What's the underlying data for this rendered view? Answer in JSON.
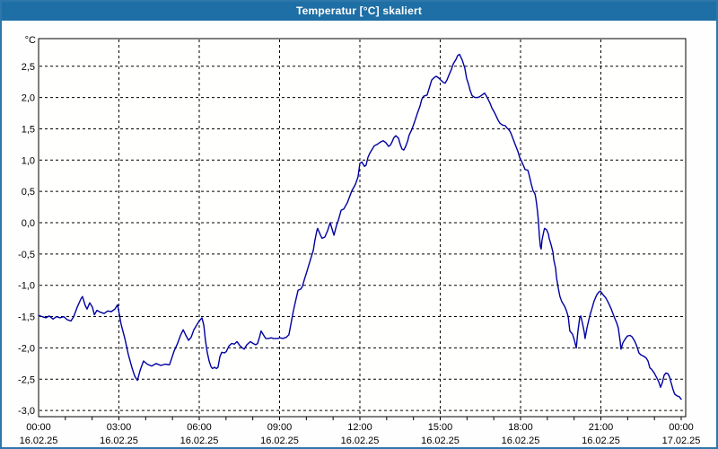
{
  "window": {
    "title": "Temperatur [°C] skaliert"
  },
  "colors": {
    "titlebar": "#1e6fa5",
    "window_border": "#2d77aa",
    "background": "#fdfefd",
    "plot_background": "#fffffe",
    "plot_border": "#000000",
    "grid": "#000000",
    "line": "#0000a0",
    "label": "#000000"
  },
  "chart_data": {
    "type": "line",
    "title": "Temperatur [°C] skaliert",
    "y_unit_label": "°C",
    "xlabel": "",
    "ylabel": "°C",
    "ylim": [
      -3.1,
      2.95
    ],
    "x_range_hours": [
      0,
      24.17
    ],
    "grid": "dashed",
    "legend_position": "none",
    "y_ticks": [
      2.5,
      2.0,
      1.5,
      1.0,
      0.5,
      0.0,
      -0.5,
      -1.0,
      -1.5,
      -2.0,
      -2.5,
      -3.0
    ],
    "y_tick_labels": [
      "2,5",
      "2,0",
      "1,5",
      "1,0",
      "0,5",
      "0,0",
      "-0,5",
      "-1,0",
      "-1,5",
      "-2,0",
      "-2,5",
      "-3,0"
    ],
    "x_ticks": [
      {
        "hour": 0,
        "time": "00:00",
        "date": "16.02.25",
        "gridline": false
      },
      {
        "hour": 3,
        "time": "03:00",
        "date": "16.02.25",
        "gridline": true
      },
      {
        "hour": 6,
        "time": "06:00",
        "date": "16.02.25",
        "gridline": true
      },
      {
        "hour": 9,
        "time": "09:00",
        "date": "16.02.25",
        "gridline": true
      },
      {
        "hour": 12,
        "time": "12:00",
        "date": "16.02.25",
        "gridline": true
      },
      {
        "hour": 15,
        "time": "15:00",
        "date": "16.02.25",
        "gridline": true
      },
      {
        "hour": 18,
        "time": "18:00",
        "date": "16.02.25",
        "gridline": true
      },
      {
        "hour": 21,
        "time": "21:00",
        "date": "16.02.25",
        "gridline": true
      },
      {
        "hour": 24,
        "time": "00:00",
        "date": "17.02.25",
        "gridline": false
      }
    ],
    "minor_tick_every_hours": 1,
    "series": [
      {
        "name": "Temperatur skaliert",
        "color": "#0000a0",
        "points": [
          [
            0,
            -1.48
          ],
          [
            0.13,
            -1.5
          ],
          [
            0.27,
            -1.52
          ],
          [
            0.4,
            -1.49
          ],
          [
            0.54,
            -1.54
          ],
          [
            0.67,
            -1.5
          ],
          [
            0.8,
            -1.52
          ],
          [
            0.94,
            -1.5
          ],
          [
            1.07,
            -1.55
          ],
          [
            1.21,
            -1.57
          ],
          [
            1.31,
            -1.5
          ],
          [
            1.44,
            -1.35
          ],
          [
            1.58,
            -1.22
          ],
          [
            1.64,
            -1.18
          ],
          [
            1.74,
            -1.32
          ],
          [
            1.81,
            -1.38
          ],
          [
            1.91,
            -1.28
          ],
          [
            2.01,
            -1.35
          ],
          [
            2.08,
            -1.47
          ],
          [
            2.18,
            -1.4
          ],
          [
            2.31,
            -1.43
          ],
          [
            2.45,
            -1.45
          ],
          [
            2.58,
            -1.41
          ],
          [
            2.72,
            -1.42
          ],
          [
            2.85,
            -1.38
          ],
          [
            2.95,
            -1.31
          ],
          [
            3.08,
            -1.62
          ],
          [
            3.22,
            -1.85
          ],
          [
            3.35,
            -2.1
          ],
          [
            3.49,
            -2.32
          ],
          [
            3.59,
            -2.45
          ],
          [
            3.69,
            -2.52
          ],
          [
            3.79,
            -2.36
          ],
          [
            3.92,
            -2.21
          ],
          [
            4.06,
            -2.26
          ],
          [
            4.22,
            -2.29
          ],
          [
            4.39,
            -2.25
          ],
          [
            4.56,
            -2.28
          ],
          [
            4.73,
            -2.26
          ],
          [
            4.89,
            -2.27
          ],
          [
            5.06,
            -2.05
          ],
          [
            5.2,
            -1.92
          ],
          [
            5.3,
            -1.8
          ],
          [
            5.4,
            -1.71
          ],
          [
            5.5,
            -1.8
          ],
          [
            5.6,
            -1.88
          ],
          [
            5.7,
            -1.83
          ],
          [
            5.8,
            -1.71
          ],
          [
            5.9,
            -1.64
          ],
          [
            6.0,
            -1.57
          ],
          [
            6.1,
            -1.52
          ],
          [
            6.17,
            -1.64
          ],
          [
            6.23,
            -1.88
          ],
          [
            6.3,
            -2.07
          ],
          [
            6.37,
            -2.21
          ],
          [
            6.44,
            -2.3
          ],
          [
            6.5,
            -2.33
          ],
          [
            6.57,
            -2.31
          ],
          [
            6.64,
            -2.33
          ],
          [
            6.7,
            -2.31
          ],
          [
            6.77,
            -2.14
          ],
          [
            6.84,
            -2.07
          ],
          [
            6.94,
            -2.08
          ],
          [
            7.01,
            -2.06
          ],
          [
            7.11,
            -1.97
          ],
          [
            7.21,
            -1.93
          ],
          [
            7.31,
            -1.94
          ],
          [
            7.41,
            -1.9
          ],
          [
            7.51,
            -1.96
          ],
          [
            7.61,
            -2.0
          ],
          [
            7.68,
            -2.02
          ],
          [
            7.78,
            -1.95
          ],
          [
            7.91,
            -1.9
          ],
          [
            8.01,
            -1.93
          ],
          [
            8.11,
            -1.95
          ],
          [
            8.18,
            -1.93
          ],
          [
            8.25,
            -1.83
          ],
          [
            8.31,
            -1.73
          ],
          [
            8.41,
            -1.8
          ],
          [
            8.48,
            -1.85
          ],
          [
            8.58,
            -1.85
          ],
          [
            8.68,
            -1.84
          ],
          [
            8.78,
            -1.85
          ],
          [
            8.92,
            -1.85
          ],
          [
            9.02,
            -1.84
          ],
          [
            9.12,
            -1.85
          ],
          [
            9.25,
            -1.83
          ],
          [
            9.35,
            -1.79
          ],
          [
            9.42,
            -1.63
          ],
          [
            9.52,
            -1.4
          ],
          [
            9.62,
            -1.21
          ],
          [
            9.69,
            -1.08
          ],
          [
            9.79,
            -1.06
          ],
          [
            9.85,
            -1.02
          ],
          [
            9.92,
            -0.92
          ],
          [
            10.02,
            -0.78
          ],
          [
            10.09,
            -0.68
          ],
          [
            10.19,
            -0.54
          ],
          [
            10.26,
            -0.44
          ],
          [
            10.32,
            -0.28
          ],
          [
            10.39,
            -0.13
          ],
          [
            10.42,
            -0.09
          ],
          [
            10.53,
            -0.2
          ],
          [
            10.59,
            -0.25
          ],
          [
            10.69,
            -0.23
          ],
          [
            10.79,
            -0.13
          ],
          [
            10.89,
            0.0
          ],
          [
            10.96,
            -0.1
          ],
          [
            11.03,
            -0.2
          ],
          [
            11.13,
            -0.04
          ],
          [
            11.19,
            0.03
          ],
          [
            11.3,
            0.2
          ],
          [
            11.4,
            0.22
          ],
          [
            11.53,
            0.32
          ],
          [
            11.7,
            0.51
          ],
          [
            11.83,
            0.61
          ],
          [
            11.93,
            0.73
          ],
          [
            12.0,
            0.95
          ],
          [
            12.07,
            0.97
          ],
          [
            12.17,
            0.9
          ],
          [
            12.23,
            0.92
          ],
          [
            12.3,
            1.04
          ],
          [
            12.37,
            1.11
          ],
          [
            12.47,
            1.18
          ],
          [
            12.54,
            1.23
          ],
          [
            12.64,
            1.25
          ],
          [
            12.77,
            1.29
          ],
          [
            12.87,
            1.31
          ],
          [
            12.97,
            1.28
          ],
          [
            13.07,
            1.22
          ],
          [
            13.14,
            1.24
          ],
          [
            13.21,
            1.3
          ],
          [
            13.27,
            1.36
          ],
          [
            13.34,
            1.39
          ],
          [
            13.44,
            1.35
          ],
          [
            13.51,
            1.25
          ],
          [
            13.57,
            1.18
          ],
          [
            13.64,
            1.16
          ],
          [
            13.71,
            1.22
          ],
          [
            13.78,
            1.3
          ],
          [
            13.84,
            1.4
          ],
          [
            13.94,
            1.49
          ],
          [
            14.04,
            1.61
          ],
          [
            14.15,
            1.75
          ],
          [
            14.25,
            1.87
          ],
          [
            14.31,
            1.97
          ],
          [
            14.38,
            2.02
          ],
          [
            14.51,
            2.04
          ],
          [
            14.61,
            2.18
          ],
          [
            14.68,
            2.28
          ],
          [
            14.78,
            2.32
          ],
          [
            14.85,
            2.34
          ],
          [
            14.95,
            2.31
          ],
          [
            15.02,
            2.28
          ],
          [
            15.12,
            2.24
          ],
          [
            15.18,
            2.23
          ],
          [
            15.25,
            2.28
          ],
          [
            15.32,
            2.35
          ],
          [
            15.42,
            2.45
          ],
          [
            15.49,
            2.54
          ],
          [
            15.59,
            2.61
          ],
          [
            15.65,
            2.67
          ],
          [
            15.72,
            2.69
          ],
          [
            15.82,
            2.6
          ],
          [
            15.92,
            2.47
          ],
          [
            15.99,
            2.3
          ],
          [
            16.06,
            2.21
          ],
          [
            16.12,
            2.11
          ],
          [
            16.19,
            2.03
          ],
          [
            16.29,
            2.0
          ],
          [
            16.39,
            2.0
          ],
          [
            16.46,
            2.01
          ],
          [
            16.56,
            2.04
          ],
          [
            16.66,
            2.07
          ],
          [
            16.73,
            2.02
          ],
          [
            16.79,
            1.97
          ],
          [
            16.86,
            1.91
          ],
          [
            16.93,
            1.83
          ],
          [
            17.0,
            1.78
          ],
          [
            17.06,
            1.73
          ],
          [
            17.16,
            1.64
          ],
          [
            17.23,
            1.59
          ],
          [
            17.33,
            1.56
          ],
          [
            17.43,
            1.55
          ],
          [
            17.5,
            1.51
          ],
          [
            17.57,
            1.48
          ],
          [
            17.63,
            1.44
          ],
          [
            17.73,
            1.33
          ],
          [
            17.8,
            1.25
          ],
          [
            17.9,
            1.14
          ],
          [
            17.97,
            1.04
          ],
          [
            18.03,
            0.99
          ],
          [
            18.1,
            0.92
          ],
          [
            18.17,
            0.85
          ],
          [
            18.27,
            0.84
          ],
          [
            18.33,
            0.75
          ],
          [
            18.4,
            0.62
          ],
          [
            18.47,
            0.51
          ],
          [
            18.54,
            0.46
          ],
          [
            18.57,
            0.39
          ],
          [
            18.6,
            0.3
          ],
          [
            18.64,
            0.15
          ],
          [
            18.67,
            0.01
          ],
          [
            18.7,
            -0.2
          ],
          [
            18.74,
            -0.38
          ],
          [
            18.77,
            -0.42
          ],
          [
            18.8,
            -0.28
          ],
          [
            18.87,
            -0.13
          ],
          [
            18.9,
            -0.09
          ],
          [
            18.97,
            -0.11
          ],
          [
            19.04,
            -0.18
          ],
          [
            19.07,
            -0.25
          ],
          [
            19.14,
            -0.35
          ],
          [
            19.21,
            -0.47
          ],
          [
            19.24,
            -0.59
          ],
          [
            19.31,
            -0.73
          ],
          [
            19.34,
            -0.87
          ],
          [
            19.41,
            -1.05
          ],
          [
            19.47,
            -1.18
          ],
          [
            19.54,
            -1.26
          ],
          [
            19.64,
            -1.33
          ],
          [
            19.71,
            -1.4
          ],
          [
            19.78,
            -1.5
          ],
          [
            19.84,
            -1.73
          ],
          [
            19.94,
            -1.78
          ],
          [
            20.01,
            -1.88
          ],
          [
            20.08,
            -2.0
          ],
          [
            20.14,
            -1.75
          ],
          [
            20.21,
            -1.52
          ],
          [
            20.25,
            -1.49
          ],
          [
            20.31,
            -1.6
          ],
          [
            20.38,
            -1.75
          ],
          [
            20.41,
            -1.85
          ],
          [
            20.48,
            -1.68
          ],
          [
            20.55,
            -1.55
          ],
          [
            20.61,
            -1.45
          ],
          [
            20.68,
            -1.35
          ],
          [
            20.75,
            -1.25
          ],
          [
            20.85,
            -1.15
          ],
          [
            20.92,
            -1.11
          ],
          [
            20.98,
            -1.09
          ],
          [
            21.08,
            -1.15
          ],
          [
            21.18,
            -1.2
          ],
          [
            21.28,
            -1.28
          ],
          [
            21.39,
            -1.38
          ],
          [
            21.45,
            -1.45
          ],
          [
            21.52,
            -1.53
          ],
          [
            21.59,
            -1.6
          ],
          [
            21.65,
            -1.68
          ],
          [
            21.72,
            -1.9
          ],
          [
            21.75,
            -2.02
          ],
          [
            21.82,
            -1.92
          ],
          [
            21.89,
            -1.87
          ],
          [
            21.99,
            -1.81
          ],
          [
            22.09,
            -1.8
          ],
          [
            22.16,
            -1.82
          ],
          [
            22.26,
            -1.89
          ],
          [
            22.32,
            -1.95
          ],
          [
            22.36,
            -2.0
          ],
          [
            22.42,
            -2.08
          ],
          [
            22.49,
            -2.11
          ],
          [
            22.59,
            -2.13
          ],
          [
            22.69,
            -2.16
          ],
          [
            22.76,
            -2.21
          ],
          [
            22.83,
            -2.32
          ],
          [
            22.89,
            -2.34
          ],
          [
            22.99,
            -2.4
          ],
          [
            23.09,
            -2.48
          ],
          [
            23.16,
            -2.54
          ],
          [
            23.23,
            -2.63
          ],
          [
            23.3,
            -2.55
          ],
          [
            23.36,
            -2.44
          ],
          [
            23.43,
            -2.4
          ],
          [
            23.5,
            -2.41
          ],
          [
            23.56,
            -2.46
          ],
          [
            23.63,
            -2.57
          ],
          [
            23.7,
            -2.67
          ],
          [
            23.76,
            -2.74
          ],
          [
            23.86,
            -2.77
          ],
          [
            23.93,
            -2.78
          ],
          [
            24.0,
            -2.82
          ]
        ]
      }
    ]
  }
}
